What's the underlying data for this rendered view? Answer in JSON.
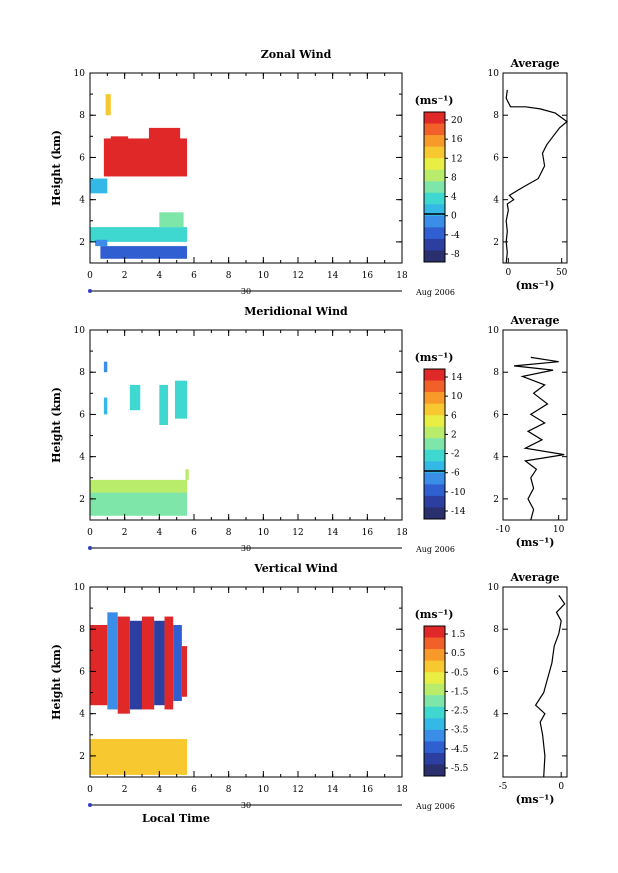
{
  "colors": {
    "palette": [
      "#2a2f6e",
      "#2c3fa0",
      "#2f5fd0",
      "#3a8ee8",
      "#34b8e6",
      "#3fd8d0",
      "#7ee6a8",
      "#b8ec6a",
      "#e8ee44",
      "#f8c830",
      "#f89a2a",
      "#f06028",
      "#e02828"
    ]
  },
  "chart_data": [
    {
      "type": "heatmap",
      "title": "Zonal Wind",
      "xlabel": "",
      "ylabel": "Height (km)",
      "xlim": [
        0,
        18
      ],
      "ylim": [
        1,
        10
      ],
      "xticks": [
        "0",
        "2",
        "4",
        "6",
        "8",
        "10",
        "12",
        "14",
        "16",
        "18"
      ],
      "yticks": [
        "2",
        "4",
        "6",
        "8",
        "10"
      ],
      "date_label": "30",
      "month_label": "Aug 2006",
      "colorbar": {
        "unit": "(ms⁻¹)",
        "labels": [
          "20",
          "16",
          "12",
          "8",
          "4",
          "0",
          "-4",
          "-8"
        ],
        "zero_line": "0"
      },
      "blocks": [
        {
          "t0": 0.8,
          "t1": 5.6,
          "h0": 5.1,
          "h1": 6.9,
          "level": 12
        },
        {
          "t0": 3.4,
          "t1": 5.2,
          "h0": 6.8,
          "h1": 7.4,
          "level": 12
        },
        {
          "t0": 1.2,
          "t1": 2.2,
          "h0": 6.8,
          "h1": 7.0,
          "level": 12
        },
        {
          "t0": 0.9,
          "t1": 1.2,
          "h0": 8.0,
          "h1": 9.0,
          "level": 9
        },
        {
          "t0": 0.0,
          "t1": 1.0,
          "h0": 4.3,
          "h1": 5.0,
          "level": 4
        },
        {
          "t0": 0.0,
          "t1": 5.6,
          "h0": 2.0,
          "h1": 2.7,
          "level": 5
        },
        {
          "t0": 4.0,
          "t1": 5.4,
          "h0": 2.7,
          "h1": 3.4,
          "level": 6
        },
        {
          "t0": 0.6,
          "t1": 5.6,
          "h0": 1.2,
          "h1": 1.8,
          "level": 2
        },
        {
          "t0": 0.3,
          "t1": 1.0,
          "h0": 1.8,
          "h1": 2.1,
          "level": 3
        }
      ],
      "profile": {
        "title": "Average",
        "xlabel": "(ms⁻¹)",
        "xlim": [
          -5,
          55
        ],
        "xticks": [
          "0",
          "50"
        ],
        "yticks": [
          "2",
          "4",
          "6",
          "8",
          "10"
        ],
        "points": [
          [
            -2,
            1
          ],
          [
            -1,
            1.5
          ],
          [
            -2,
            2
          ],
          [
            -1,
            2.5
          ],
          [
            -2,
            3
          ],
          [
            0,
            3.5
          ],
          [
            -1,
            3.8
          ],
          [
            5,
            4
          ],
          [
            1,
            4.2
          ],
          [
            14,
            4.6
          ],
          [
            28,
            5
          ],
          [
            34,
            5.6
          ],
          [
            32,
            6.2
          ],
          [
            36,
            6.6
          ],
          [
            42,
            7
          ],
          [
            48,
            7.4
          ],
          [
            55,
            7.7
          ],
          [
            44,
            8.1
          ],
          [
            30,
            8.3
          ],
          [
            16,
            8.4
          ],
          [
            2,
            8.4
          ],
          [
            -2,
            8.8
          ],
          [
            -1,
            9.2
          ]
        ]
      }
    },
    {
      "type": "heatmap",
      "title": "Meridional Wind",
      "xlabel": "",
      "ylabel": "Height (km)",
      "xlim": [
        0,
        18
      ],
      "ylim": [
        1,
        10
      ],
      "xticks": [
        "0",
        "2",
        "4",
        "6",
        "8",
        "10",
        "12",
        "14",
        "16",
        "18"
      ],
      "yticks": [
        "2",
        "4",
        "6",
        "8",
        "10"
      ],
      "date_label": "30",
      "month_label": "Aug 2006",
      "colorbar": {
        "unit": "(ms⁻¹)",
        "labels": [
          "14",
          "10",
          "6",
          "2",
          "-2",
          "-6",
          "-10",
          "-14"
        ],
        "zero_line": "0"
      },
      "blocks": [
        {
          "t0": 0.0,
          "t1": 5.6,
          "h0": 1.2,
          "h1": 2.3,
          "level": 6
        },
        {
          "t0": 0.0,
          "t1": 5.6,
          "h0": 2.3,
          "h1": 2.9,
          "level": 7
        },
        {
          "t0": 5.5,
          "t1": 5.7,
          "h0": 2.9,
          "h1": 3.4,
          "level": 7
        },
        {
          "t0": 2.3,
          "t1": 2.9,
          "h0": 6.2,
          "h1": 7.4,
          "level": 5
        },
        {
          "t0": 4.0,
          "t1": 4.5,
          "h0": 5.5,
          "h1": 7.4,
          "level": 5
        },
        {
          "t0": 4.9,
          "t1": 5.6,
          "h0": 5.8,
          "h1": 7.6,
          "level": 5
        },
        {
          "t0": 0.8,
          "t1": 1.0,
          "h0": 6.0,
          "h1": 6.8,
          "level": 4
        },
        {
          "t0": 0.8,
          "t1": 1.0,
          "h0": 8.0,
          "h1": 8.5,
          "level": 3
        }
      ],
      "profile": {
        "title": "Average",
        "xlabel": "(ms⁻¹)",
        "xlim": [
          -10,
          13
        ],
        "xticks": [
          "-10",
          "10"
        ],
        "yticks": [
          "2",
          "4",
          "6",
          "8",
          "10"
        ],
        "points": [
          [
            0,
            1
          ],
          [
            1,
            1.5
          ],
          [
            -1,
            2
          ],
          [
            1,
            2.5
          ],
          [
            0,
            3
          ],
          [
            2,
            3.4
          ],
          [
            -2,
            3.8
          ],
          [
            12,
            4.1
          ],
          [
            -2,
            4.4
          ],
          [
            4,
            4.8
          ],
          [
            -1,
            5.2
          ],
          [
            5,
            5.6
          ],
          [
            0,
            6
          ],
          [
            6,
            6.5
          ],
          [
            1,
            7
          ],
          [
            5,
            7.4
          ],
          [
            -3,
            7.8
          ],
          [
            8,
            8.1
          ],
          [
            -6,
            8.3
          ],
          [
            10,
            8.5
          ],
          [
            0,
            8.7
          ]
        ]
      }
    },
    {
      "type": "heatmap",
      "title": "Vertical Wind",
      "xlabel": "Local Time",
      "ylabel": "Height (km)",
      "xlim": [
        0,
        18
      ],
      "ylim": [
        1,
        10
      ],
      "xticks": [
        "0",
        "2",
        "4",
        "6",
        "8",
        "10",
        "12",
        "14",
        "16",
        "18"
      ],
      "yticks": [
        "2",
        "4",
        "6",
        "8",
        "10"
      ],
      "date_label": "30",
      "month_label": "Aug 2006",
      "colorbar": {
        "unit": "(ms⁻¹)",
        "labels": [
          "1.5",
          "0.5",
          "-0.5",
          "-1.5",
          "-2.5",
          "-3.5",
          "-4.5",
          "-5.5"
        ],
        "zero_line": ""
      },
      "blocks": [
        {
          "t0": 0.0,
          "t1": 5.6,
          "h0": 1.1,
          "h1": 2.8,
          "level": 9
        },
        {
          "t0": 0.0,
          "t1": 1.0,
          "h0": 4.4,
          "h1": 8.2,
          "level": 12
        },
        {
          "t0": 1.0,
          "t1": 1.6,
          "h0": 4.2,
          "h1": 8.8,
          "level": 3
        },
        {
          "t0": 1.6,
          "t1": 2.3,
          "h0": 4.0,
          "h1": 8.6,
          "level": 12
        },
        {
          "t0": 2.3,
          "t1": 3.0,
          "h0": 4.2,
          "h1": 8.4,
          "level": 1
        },
        {
          "t0": 3.0,
          "t1": 3.7,
          "h0": 4.2,
          "h1": 8.6,
          "level": 12
        },
        {
          "t0": 3.7,
          "t1": 4.3,
          "h0": 4.4,
          "h1": 8.4,
          "level": 1
        },
        {
          "t0": 4.3,
          "t1": 4.8,
          "h0": 4.2,
          "h1": 8.6,
          "level": 12
        },
        {
          "t0": 4.8,
          "t1": 5.3,
          "h0": 4.6,
          "h1": 8.2,
          "level": 2
        },
        {
          "t0": 5.3,
          "t1": 5.6,
          "h0": 4.8,
          "h1": 7.2,
          "level": 12
        }
      ],
      "profile": {
        "title": "Average",
        "xlabel": "(ms⁻¹)",
        "xlim": [
          -5,
          0.5
        ],
        "xticks": [
          "-5",
          "0"
        ],
        "yticks": [
          "2",
          "4",
          "6",
          "8",
          "10"
        ],
        "points": [
          [
            -1.5,
            1
          ],
          [
            -1.4,
            2
          ],
          [
            -1.6,
            3
          ],
          [
            -1.8,
            3.6
          ],
          [
            -1.4,
            4
          ],
          [
            -2.2,
            4.4
          ],
          [
            -1.5,
            5
          ],
          [
            -1.2,
            5.6
          ],
          [
            -0.8,
            6.4
          ],
          [
            -0.6,
            7.2
          ],
          [
            -0.2,
            7.8
          ],
          [
            0,
            8.4
          ],
          [
            -0.4,
            8.8
          ],
          [
            0.3,
            9.2
          ],
          [
            -0.2,
            9.6
          ]
        ]
      }
    }
  ]
}
